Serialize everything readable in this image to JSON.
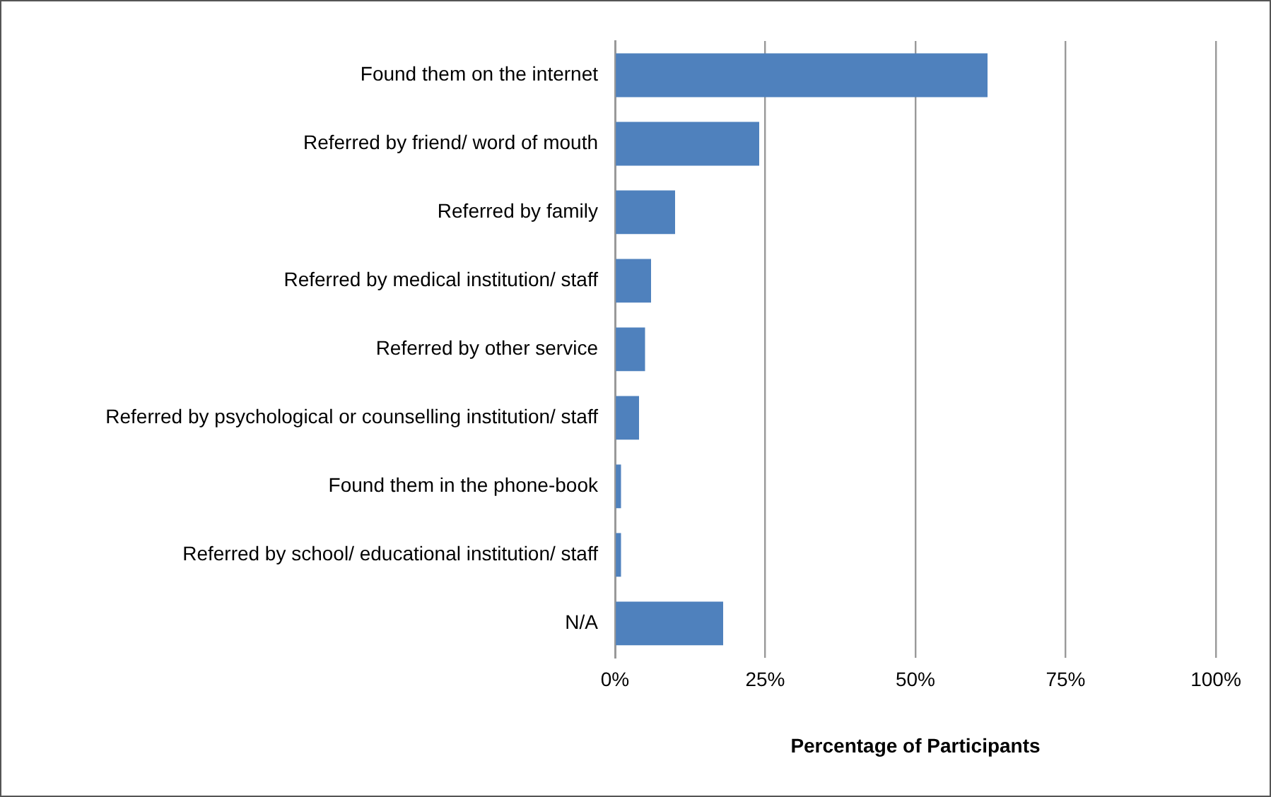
{
  "chart_data": {
    "type": "bar",
    "orientation": "horizontal",
    "xlabel": "Percentage of Participants",
    "categories": [
      "Found them on the internet",
      "Referred by friend/ word of mouth",
      "Referred by family",
      "Referred by medical institution/ staff",
      "Referred by other service",
      "Referred by psychological or counselling institution/ staff",
      "Found them in the phone-book",
      "Referred by school/ educational institution/ staff",
      "N/A"
    ],
    "values": [
      62,
      24,
      10,
      6,
      5,
      4,
      1,
      1,
      18
    ],
    "color": "#4f81bd",
    "xlim": [
      0,
      100
    ],
    "xticks": [
      {
        "value": 0,
        "label": "0%"
      },
      {
        "value": 25,
        "label": "25%"
      },
      {
        "value": 50,
        "label": "50%"
      },
      {
        "value": 75,
        "label": "75%"
      },
      {
        "value": 100,
        "label": "100%"
      }
    ],
    "grid": "x",
    "legend": false
  }
}
